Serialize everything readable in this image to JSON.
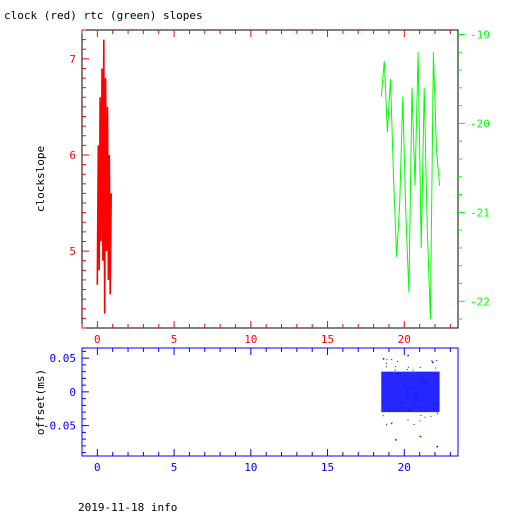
{
  "title": "clock (red) rtc (green) slopes",
  "footer": "2019-11-18 info",
  "colors": {
    "clock": "#ff0000",
    "rtc": "#00ff00",
    "offset": "#0000ff",
    "axis": "#000000"
  },
  "chart_data": [
    {
      "type": "line",
      "ylabel": "clockslope",
      "xlim": [
        -1,
        23.5
      ],
      "x_ticks": [
        0,
        5,
        10,
        15,
        20
      ],
      "x_tick_labels": [
        "0",
        "5",
        "10",
        "15",
        "20"
      ],
      "ylim": [
        4.2,
        7.3
      ],
      "y_ticks": [
        5,
        6,
        7
      ],
      "y_tick_labels": [
        "5",
        "6",
        "7"
      ],
      "y2lim": [
        -22.3,
        -18.95
      ],
      "y2_ticks": [
        -22,
        -21,
        -20,
        -19
      ],
      "y2_tick_labels": [
        "-22",
        "-21",
        "-20",
        "-19"
      ],
      "series": [
        {
          "name": "clock",
          "axis": "left",
          "x": [
            0.0,
            0.06,
            0.12,
            0.18,
            0.24,
            0.3,
            0.36,
            0.42,
            0.48,
            0.54,
            0.6,
            0.66,
            0.72,
            0.78,
            0.84,
            0.9
          ],
          "y": [
            4.65,
            6.1,
            4.8,
            6.6,
            5.1,
            6.9,
            4.9,
            7.2,
            4.35,
            6.8,
            5.0,
            6.5,
            4.7,
            6.0,
            4.55,
            5.6
          ]
        },
        {
          "name": "rtc",
          "axis": "right",
          "x": [
            18.5,
            18.7,
            18.9,
            19.1,
            19.3,
            19.5,
            19.7,
            19.9,
            20.1,
            20.3,
            20.5,
            20.7,
            20.9,
            21.1,
            21.3,
            21.5,
            21.7,
            21.9,
            22.1,
            22.3
          ],
          "y": [
            -19.7,
            -19.3,
            -20.1,
            -19.5,
            -20.6,
            -21.5,
            -20.9,
            -19.7,
            -21.0,
            -21.9,
            -19.6,
            -20.7,
            -19.2,
            -21.4,
            -19.6,
            -21.2,
            -22.2,
            -19.2,
            -20.3,
            -20.7
          ]
        }
      ]
    },
    {
      "type": "scatter",
      "ylabel": "offset(ms)",
      "xlim": [
        -1,
        23.5
      ],
      "x_ticks": [
        0,
        5,
        10,
        15,
        20
      ],
      "x_tick_labels": [
        "0",
        "5",
        "10",
        "15",
        "20"
      ],
      "ylim": [
        -0.095,
        0.065
      ],
      "y_ticks": [
        -0.05,
        0,
        0.05
      ],
      "y_tick_labels": [
        "-0.05",
        "0",
        "0.05"
      ],
      "series": [
        {
          "name": "offset",
          "x_range": [
            18.5,
            22.3
          ],
          "band": [
            -0.03,
            0.03
          ],
          "outliers": [
            [
              18.6,
              0.05
            ],
            [
              19.4,
              -0.07
            ],
            [
              20.2,
              0.055
            ],
            [
              21.0,
              -0.065
            ],
            [
              21.8,
              0.045
            ],
            [
              22.1,
              -0.08
            ]
          ]
        }
      ]
    }
  ]
}
